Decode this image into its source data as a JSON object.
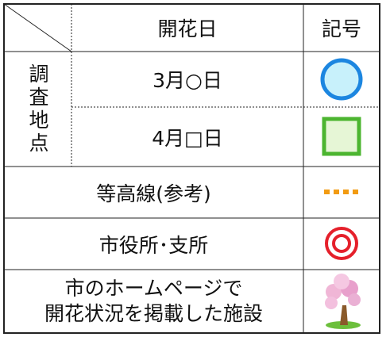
{
  "header": {
    "columns": [
      "開花日",
      "記号"
    ]
  },
  "rows": [
    {
      "group": "調査地点",
      "label": "3月○日"
    },
    {
      "label": "4月□日"
    },
    {
      "label": "等高線(参考)"
    },
    {
      "label": "市役所･支所"
    },
    {
      "lines": [
        "市のホームページで",
        "開花状況を掲載した施設"
      ]
    }
  ]
}
